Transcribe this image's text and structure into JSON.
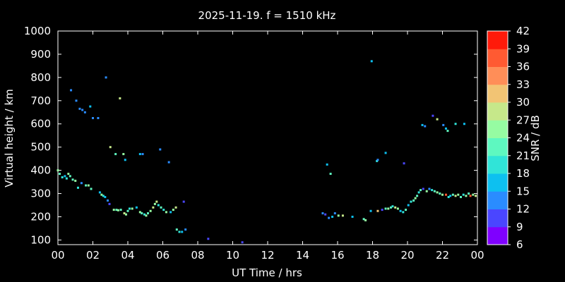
{
  "chart_data": {
    "type": "scatter",
    "title": "2025-11-19. f = 1510 kHz",
    "xlabel": "UT Time / hrs",
    "ylabel": "Virtual height / km",
    "colorbar_label": "SNR / dB",
    "xlim": [
      0,
      24
    ],
    "ylim": [
      80,
      1000
    ],
    "xticks": [
      "00",
      "02",
      "04",
      "06",
      "08",
      "10",
      "12",
      "14",
      "16",
      "18",
      "20",
      "22",
      "00"
    ],
    "yticks": [
      "100",
      "200",
      "300",
      "400",
      "500",
      "600",
      "700",
      "800",
      "900",
      "1000"
    ],
    "colorbar_ticks": [
      "6",
      "9",
      "12",
      "15",
      "18",
      "21",
      "24",
      "27",
      "30",
      "33",
      "36",
      "39",
      "42"
    ],
    "colorbar_colors": [
      "#7f00ff",
      "#4a46ff",
      "#2a8cff",
      "#0dc0f0",
      "#30e4d8",
      "#5ef8c0",
      "#96fca2",
      "#c6e88a",
      "#f2c474",
      "#ff8e58",
      "#ff5a32",
      "#ff1a0a"
    ],
    "grid": false,
    "points": [
      {
        "x": 0.0,
        "y": 400,
        "snr": 24
      },
      {
        "x": 0.1,
        "y": 385,
        "snr": 21
      },
      {
        "x": 0.25,
        "y": 370,
        "snr": 18
      },
      {
        "x": 0.4,
        "y": 375,
        "snr": 15
      },
      {
        "x": 0.5,
        "y": 365,
        "snr": 18
      },
      {
        "x": 0.6,
        "y": 385,
        "snr": 24
      },
      {
        "x": 0.7,
        "y": 375,
        "snr": 21
      },
      {
        "x": 0.85,
        "y": 360,
        "snr": 21
      },
      {
        "x": 1.0,
        "y": 355,
        "snr": 24
      },
      {
        "x": 1.15,
        "y": 325,
        "snr": 18
      },
      {
        "x": 1.35,
        "y": 345,
        "snr": 12
      },
      {
        "x": 1.6,
        "y": 335,
        "snr": 21
      },
      {
        "x": 1.75,
        "y": 335,
        "snr": 24
      },
      {
        "x": 1.9,
        "y": 320,
        "snr": 21
      },
      {
        "x": 2.4,
        "y": 305,
        "snr": 15
      },
      {
        "x": 2.5,
        "y": 295,
        "snr": 24
      },
      {
        "x": 2.6,
        "y": 290,
        "snr": 18
      },
      {
        "x": 2.7,
        "y": 285,
        "snr": 15
      },
      {
        "x": 2.85,
        "y": 270,
        "snr": 12
      },
      {
        "x": 2.95,
        "y": 255,
        "snr": 9
      },
      {
        "x": 3.2,
        "y": 230,
        "snr": 24
      },
      {
        "x": 3.35,
        "y": 230,
        "snr": 21
      },
      {
        "x": 3.45,
        "y": 228,
        "snr": 24
      },
      {
        "x": 3.6,
        "y": 230,
        "snr": 21
      },
      {
        "x": 3.8,
        "y": 215,
        "snr": 27
      },
      {
        "x": 3.9,
        "y": 210,
        "snr": 24
      },
      {
        "x": 4.0,
        "y": 225,
        "snr": 21
      },
      {
        "x": 4.1,
        "y": 235,
        "snr": 18
      },
      {
        "x": 4.25,
        "y": 235,
        "snr": 24
      },
      {
        "x": 4.5,
        "y": 240,
        "snr": 15
      },
      {
        "x": 4.7,
        "y": 220,
        "snr": 24
      },
      {
        "x": 4.8,
        "y": 215,
        "snr": 21
      },
      {
        "x": 4.95,
        "y": 210,
        "snr": 18
      },
      {
        "x": 5.05,
        "y": 205,
        "snr": 24
      },
      {
        "x": 5.15,
        "y": 215,
        "snr": 21
      },
      {
        "x": 5.3,
        "y": 225,
        "snr": 24
      },
      {
        "x": 5.45,
        "y": 240,
        "snr": 27
      },
      {
        "x": 5.55,
        "y": 255,
        "snr": 24
      },
      {
        "x": 5.65,
        "y": 265,
        "snr": 27
      },
      {
        "x": 5.75,
        "y": 250,
        "snr": 18
      },
      {
        "x": 5.9,
        "y": 240,
        "snr": 21
      },
      {
        "x": 6.05,
        "y": 230,
        "snr": 18
      },
      {
        "x": 6.2,
        "y": 220,
        "snr": 24
      },
      {
        "x": 6.45,
        "y": 220,
        "snr": 15
      },
      {
        "x": 6.6,
        "y": 230,
        "snr": 24
      },
      {
        "x": 6.75,
        "y": 240,
        "snr": 27
      },
      {
        "x": 6.8,
        "y": 145,
        "snr": 21
      },
      {
        "x": 6.95,
        "y": 135,
        "snr": 18
      },
      {
        "x": 7.1,
        "y": 135,
        "snr": 15
      },
      {
        "x": 7.3,
        "y": 145,
        "snr": 12
      },
      {
        "x": 7.2,
        "y": 265,
        "snr": 9
      },
      {
        "x": 0.75,
        "y": 745,
        "snr": 12
      },
      {
        "x": 1.05,
        "y": 700,
        "snr": 12
      },
      {
        "x": 1.25,
        "y": 665,
        "snr": 12
      },
      {
        "x": 1.4,
        "y": 660,
        "snr": 12
      },
      {
        "x": 1.55,
        "y": 650,
        "snr": 12
      },
      {
        "x": 1.85,
        "y": 675,
        "snr": 15
      },
      {
        "x": 2.0,
        "y": 625,
        "snr": 12
      },
      {
        "x": 2.3,
        "y": 625,
        "snr": 12
      },
      {
        "x": 2.75,
        "y": 800,
        "snr": 12
      },
      {
        "x": 3.0,
        "y": 500,
        "snr": 27
      },
      {
        "x": 3.3,
        "y": 470,
        "snr": 21
      },
      {
        "x": 3.55,
        "y": 710,
        "snr": 27
      },
      {
        "x": 3.75,
        "y": 470,
        "snr": 24
      },
      {
        "x": 3.85,
        "y": 445,
        "snr": 15
      },
      {
        "x": 4.7,
        "y": 470,
        "snr": 15
      },
      {
        "x": 4.85,
        "y": 470,
        "snr": 12
      },
      {
        "x": 5.85,
        "y": 490,
        "snr": 12
      },
      {
        "x": 6.35,
        "y": 435,
        "snr": 12
      },
      {
        "x": 8.6,
        "y": 105,
        "snr": 9
      },
      {
        "x": 10.55,
        "y": 90,
        "snr": 9
      },
      {
        "x": 15.15,
        "y": 215,
        "snr": 12
      },
      {
        "x": 15.3,
        "y": 210,
        "snr": 9
      },
      {
        "x": 15.5,
        "y": 195,
        "snr": 12
      },
      {
        "x": 15.7,
        "y": 200,
        "snr": 15
      },
      {
        "x": 15.85,
        "y": 215,
        "snr": 12
      },
      {
        "x": 16.05,
        "y": 205,
        "snr": 24
      },
      {
        "x": 16.3,
        "y": 205,
        "snr": 27
      },
      {
        "x": 16.85,
        "y": 200,
        "snr": 15
      },
      {
        "x": 17.5,
        "y": 190,
        "snr": 21
      },
      {
        "x": 17.6,
        "y": 185,
        "snr": 24
      },
      {
        "x": 17.9,
        "y": 225,
        "snr": 15
      },
      {
        "x": 18.3,
        "y": 225,
        "snr": 30
      },
      {
        "x": 18.55,
        "y": 230,
        "snr": 9
      },
      {
        "x": 18.75,
        "y": 235,
        "snr": 21
      },
      {
        "x": 18.9,
        "y": 235,
        "snr": 24
      },
      {
        "x": 19.05,
        "y": 240,
        "snr": 21
      },
      {
        "x": 19.15,
        "y": 245,
        "snr": 18
      },
      {
        "x": 19.3,
        "y": 240,
        "snr": 27
      },
      {
        "x": 19.45,
        "y": 235,
        "snr": 24
      },
      {
        "x": 19.6,
        "y": 225,
        "snr": 15
      },
      {
        "x": 19.75,
        "y": 220,
        "snr": 18
      },
      {
        "x": 19.9,
        "y": 230,
        "snr": 21
      },
      {
        "x": 20.05,
        "y": 250,
        "snr": 15
      },
      {
        "x": 20.2,
        "y": 265,
        "snr": 18
      },
      {
        "x": 20.35,
        "y": 270,
        "snr": 21
      },
      {
        "x": 20.45,
        "y": 280,
        "snr": 24
      },
      {
        "x": 20.55,
        "y": 290,
        "snr": 21
      },
      {
        "x": 20.65,
        "y": 305,
        "snr": 18
      },
      {
        "x": 20.75,
        "y": 315,
        "snr": 21
      },
      {
        "x": 20.9,
        "y": 320,
        "snr": 9
      },
      {
        "x": 21.1,
        "y": 310,
        "snr": 24
      },
      {
        "x": 21.25,
        "y": 320,
        "snr": 12
      },
      {
        "x": 21.4,
        "y": 315,
        "snr": 18
      },
      {
        "x": 21.55,
        "y": 310,
        "snr": 21
      },
      {
        "x": 21.7,
        "y": 305,
        "snr": 24
      },
      {
        "x": 21.85,
        "y": 300,
        "snr": 21
      },
      {
        "x": 22.0,
        "y": 295,
        "snr": 24
      },
      {
        "x": 22.2,
        "y": 295,
        "snr": 36
      },
      {
        "x": 22.35,
        "y": 285,
        "snr": 18
      },
      {
        "x": 22.45,
        "y": 290,
        "snr": 15
      },
      {
        "x": 22.6,
        "y": 295,
        "snr": 21
      },
      {
        "x": 22.75,
        "y": 290,
        "snr": 27
      },
      {
        "x": 22.9,
        "y": 295,
        "snr": 24
      },
      {
        "x": 23.05,
        "y": 285,
        "snr": 21
      },
      {
        "x": 23.2,
        "y": 295,
        "snr": 18
      },
      {
        "x": 23.35,
        "y": 290,
        "snr": 24
      },
      {
        "x": 23.5,
        "y": 300,
        "snr": 21
      },
      {
        "x": 23.6,
        "y": 290,
        "snr": 36
      },
      {
        "x": 23.75,
        "y": 295,
        "snr": 24
      },
      {
        "x": 23.9,
        "y": 290,
        "snr": 27
      },
      {
        "x": 15.4,
        "y": 425,
        "snr": 15
      },
      {
        "x": 15.6,
        "y": 385,
        "snr": 21
      },
      {
        "x": 17.95,
        "y": 870,
        "snr": 15
      },
      {
        "x": 18.25,
        "y": 440,
        "snr": 18
      },
      {
        "x": 18.3,
        "y": 445,
        "snr": 12
      },
      {
        "x": 18.75,
        "y": 475,
        "snr": 15
      },
      {
        "x": 19.8,
        "y": 430,
        "snr": 9
      },
      {
        "x": 20.85,
        "y": 595,
        "snr": 15
      },
      {
        "x": 21.0,
        "y": 590,
        "snr": 12
      },
      {
        "x": 21.45,
        "y": 635,
        "snr": 9
      },
      {
        "x": 21.7,
        "y": 620,
        "snr": 27
      },
      {
        "x": 22.05,
        "y": 595,
        "snr": 12
      },
      {
        "x": 22.2,
        "y": 580,
        "snr": 15
      },
      {
        "x": 22.3,
        "y": 570,
        "snr": 21
      },
      {
        "x": 22.75,
        "y": 600,
        "snr": 18
      },
      {
        "x": 23.25,
        "y": 600,
        "snr": 15
      }
    ]
  }
}
